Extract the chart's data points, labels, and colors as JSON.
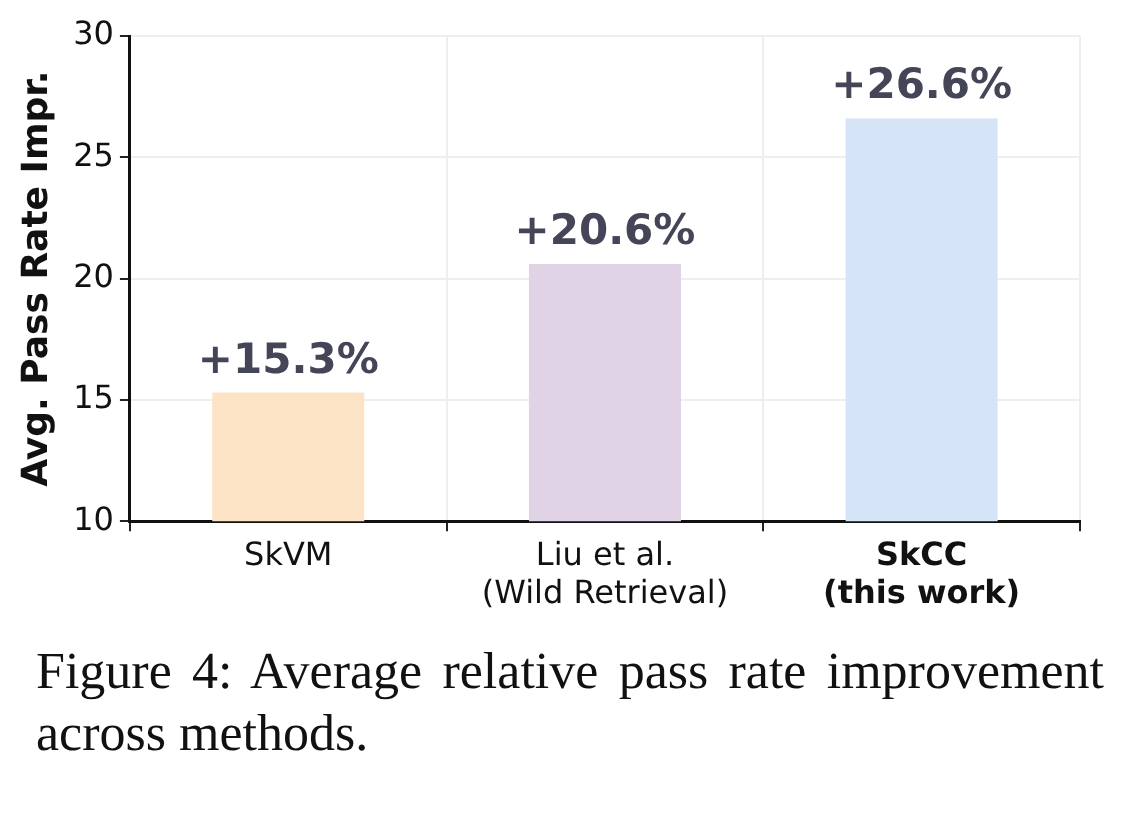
{
  "chart_data": {
    "type": "bar",
    "ylabel": "Avg. Pass Rate Impr.",
    "categories": [
      "SkVM",
      "Liu et al.\n(Wild Retrieval)",
      "SkCC\n(this work)"
    ],
    "values": [
      15.3,
      20.6,
      26.6
    ],
    "colors": [
      "#fde3c6",
      "#e0d3e6",
      "#d6e4f8"
    ],
    "value_labels": [
      "+15.3%",
      "+20.6%",
      "+26.6%"
    ],
    "ylim": [
      10,
      30
    ],
    "yticks": [
      10,
      15,
      20,
      25,
      30
    ],
    "grid": true,
    "annotations": [
      "Figure 4: Average relative pass rate improvement across methods."
    ]
  }
}
